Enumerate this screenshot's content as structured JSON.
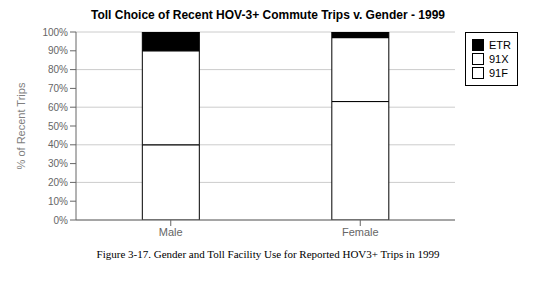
{
  "chart_data": {
    "type": "bar",
    "title": "Toll Choice of Recent HOV-3+ Commute Trips v. Gender - 1999",
    "y_label": "% of Recent Trips",
    "caption": "Figure 3-17. Gender and Toll Facility Use for Reported HOV3+ Trips in 1999",
    "categories": [
      "Male",
      "Female"
    ],
    "series": [
      {
        "name": "91F",
        "color": "#ffffff",
        "values": [
          40,
          63
        ]
      },
      {
        "name": "91X",
        "color": "#ffffff",
        "values": [
          50,
          34
        ]
      },
      {
        "name": "ETR",
        "color": "#000000",
        "values": [
          10,
          3
        ]
      }
    ],
    "stacked": true,
    "ylim": [
      0,
      100
    ],
    "yticks": [
      {
        "value": 0,
        "label": "0%"
      },
      {
        "value": 10,
        "label": "10%"
      },
      {
        "value": 20,
        "label": "20%"
      },
      {
        "value": 30,
        "label": "30%"
      },
      {
        "value": 40,
        "label": "40%"
      },
      {
        "value": 50,
        "label": "50%"
      },
      {
        "value": 60,
        "label": "60%"
      },
      {
        "value": 70,
        "label": "70%"
      },
      {
        "value": 80,
        "label": "80%"
      },
      {
        "value": 90,
        "label": "90%"
      },
      {
        "value": 100,
        "label": "100%"
      }
    ],
    "grid": true,
    "legend": "right"
  }
}
